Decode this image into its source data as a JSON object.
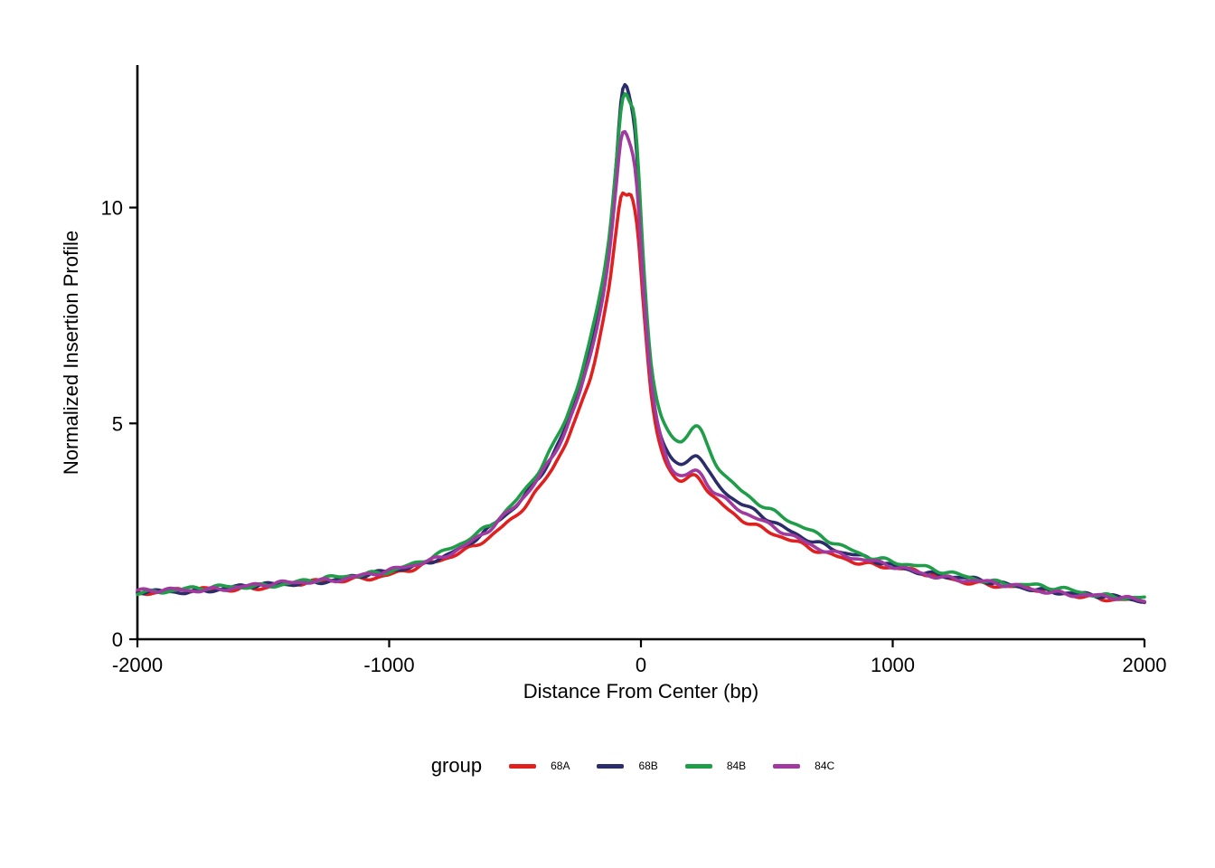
{
  "figure": {
    "background": "#ffffff",
    "axis_color": "#000000"
  },
  "chart_data": {
    "type": "line",
    "title": "",
    "xlabel": "Distance From Center (bp)",
    "ylabel": "Normalized Insertion Profile",
    "xlim": [
      -2000,
      2000
    ],
    "ylim": [
      0,
      13.3
    ],
    "grid": false,
    "legend_title": "group",
    "legend_position": "bottom",
    "x_ticks": [
      "-2000",
      "-1000",
      "0",
      "1000",
      "2000"
    ],
    "x_tick_values": [
      -2000,
      -1000,
      0,
      1000,
      2000
    ],
    "y_ticks": [
      "0",
      "5",
      "10"
    ],
    "y_tick_values": [
      0,
      5,
      10
    ],
    "x": [
      -2000,
      -1800,
      -1600,
      -1400,
      -1200,
      -1000,
      -900,
      -800,
      -700,
      -600,
      -500,
      -450,
      -400,
      -350,
      -300,
      -250,
      -200,
      -175,
      -150,
      -125,
      -100,
      -90,
      -80,
      -70,
      -60,
      -50,
      -40,
      -30,
      -20,
      -10,
      0,
      20,
      40,
      60,
      80,
      100,
      120,
      140,
      160,
      180,
      200,
      220,
      240,
      260,
      280,
      300,
      350,
      400,
      450,
      500,
      600,
      700,
      800,
      900,
      1000,
      1200,
      1400,
      1600,
      1800,
      2000
    ],
    "series": [
      {
        "name": "68A",
        "color": "#e0201f",
        "values": [
          1.08,
          1.12,
          1.18,
          1.26,
          1.36,
          1.5,
          1.63,
          1.8,
          2.05,
          2.4,
          2.85,
          3.15,
          3.5,
          3.95,
          4.5,
          5.2,
          6.1,
          6.7,
          7.4,
          8.2,
          9.4,
          9.9,
          10.3,
          10.4,
          10.25,
          10.35,
          10.4,
          10.2,
          9.9,
          9.4,
          8.5,
          6.9,
          5.6,
          4.85,
          4.4,
          4.05,
          3.85,
          3.7,
          3.62,
          3.65,
          3.75,
          3.8,
          3.7,
          3.5,
          3.35,
          3.25,
          3.0,
          2.8,
          2.65,
          2.5,
          2.25,
          2.05,
          1.9,
          1.75,
          1.65,
          1.43,
          1.26,
          1.12,
          0.98,
          0.87
        ]
      },
      {
        "name": "68B",
        "color": "#2b2d6b",
        "values": [
          1.08,
          1.12,
          1.2,
          1.28,
          1.4,
          1.55,
          1.7,
          1.9,
          2.15,
          2.55,
          3.05,
          3.4,
          3.8,
          4.3,
          4.9,
          5.7,
          6.75,
          7.4,
          8.2,
          9.2,
          10.8,
          11.7,
          12.5,
          12.85,
          12.9,
          12.7,
          12.4,
          12.1,
          11.6,
          10.7,
          9.4,
          7.4,
          6.0,
          5.2,
          4.7,
          4.4,
          4.2,
          4.1,
          4.05,
          4.1,
          4.25,
          4.35,
          4.2,
          3.95,
          3.75,
          3.6,
          3.3,
          3.1,
          2.95,
          2.8,
          2.5,
          2.25,
          2.0,
          1.85,
          1.7,
          1.48,
          1.3,
          1.15,
          1.0,
          0.9
        ]
      },
      {
        "name": "84B",
        "color": "#1f9d49",
        "values": [
          1.1,
          1.15,
          1.22,
          1.3,
          1.42,
          1.6,
          1.75,
          1.95,
          2.25,
          2.65,
          3.2,
          3.55,
          3.95,
          4.45,
          5.05,
          5.85,
          6.95,
          7.6,
          8.4,
          9.4,
          10.9,
          11.6,
          12.3,
          12.65,
          12.7,
          12.55,
          12.35,
          12.4,
          11.9,
          11.0,
          9.8,
          7.8,
          6.4,
          5.6,
          5.1,
          4.85,
          4.7,
          4.6,
          4.55,
          4.65,
          4.85,
          4.95,
          4.8,
          4.5,
          4.25,
          4.05,
          3.7,
          3.45,
          3.25,
          3.05,
          2.7,
          2.4,
          2.15,
          1.95,
          1.8,
          1.55,
          1.35,
          1.2,
          1.05,
          0.95
        ]
      },
      {
        "name": "84C",
        "color": "#a03a9e",
        "values": [
          1.1,
          1.14,
          1.21,
          1.29,
          1.41,
          1.56,
          1.71,
          1.9,
          2.18,
          2.55,
          3.05,
          3.38,
          3.78,
          4.25,
          4.85,
          5.6,
          6.6,
          7.25,
          8.0,
          8.9,
          10.3,
          11.0,
          11.6,
          11.8,
          11.75,
          11.6,
          11.4,
          11.2,
          10.8,
          10.1,
          9.0,
          7.2,
          5.9,
          5.1,
          4.6,
          4.25,
          4.0,
          3.85,
          3.78,
          3.8,
          3.9,
          3.95,
          3.85,
          3.65,
          3.5,
          3.4,
          3.15,
          2.95,
          2.8,
          2.65,
          2.4,
          2.15,
          1.95,
          1.8,
          1.68,
          1.45,
          1.28,
          1.13,
          1.0,
          0.88
        ]
      }
    ]
  }
}
